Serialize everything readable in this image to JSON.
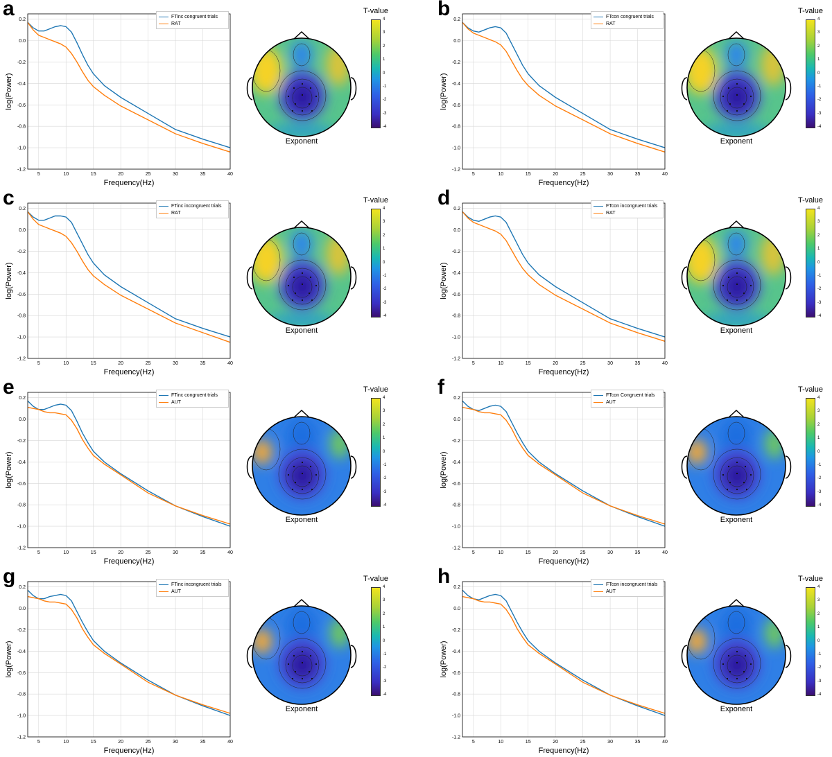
{
  "figure": {
    "tvalue_label": "T-value",
    "exponent_label": "Exponent",
    "colorbar_ticks": [
      "4",
      "3",
      "2",
      "1",
      "0",
      "-1",
      "-2",
      "-3",
      "-4"
    ],
    "colors": {
      "blue": "#1f77b4",
      "orange": "#ff7f0e"
    }
  },
  "panels": [
    {
      "letter": "a",
      "legend": [
        "FTinc congruent trials",
        "RAT"
      ]
    },
    {
      "letter": "b",
      "legend": [
        "FTcon congruent trials",
        "RAT"
      ]
    },
    {
      "letter": "c",
      "legend": [
        "FTinc incongruent trials",
        "RAT"
      ]
    },
    {
      "letter": "d",
      "legend": [
        "FTcon incongruent trials",
        "RAT"
      ]
    },
    {
      "letter": "e",
      "legend": [
        "FTinc congruent trials",
        "AUT"
      ]
    },
    {
      "letter": "f",
      "legend": [
        "FTcon Congruent trials",
        "AUT"
      ]
    },
    {
      "letter": "g",
      "legend": [
        "FTinc incongruent trials",
        "AUT"
      ]
    },
    {
      "letter": "h",
      "legend": [
        "FTcon incongruent trials",
        "AUT"
      ]
    }
  ],
  "chart_data": [
    {
      "panel": "a",
      "type": "line",
      "xlabel": "Frequency(Hz)",
      "ylabel": "log(Power)",
      "xlim": [
        3,
        40
      ],
      "ylim": [
        -1.2,
        0.25
      ],
      "xticks": [
        5,
        10,
        15,
        20,
        25,
        30,
        35,
        40
      ],
      "yticks": [
        0.2,
        0.0,
        -0.2,
        -0.4,
        -0.6,
        -0.8,
        -1.0,
        -1.2
      ],
      "x": [
        3,
        4,
        5,
        6,
        7,
        8,
        9,
        10,
        11,
        12,
        13,
        14,
        15,
        17,
        20,
        25,
        30,
        35,
        40
      ],
      "series": [
        {
          "name": "FTinc congruent trials",
          "color": "#1f77b4",
          "values": [
            0.17,
            0.12,
            0.09,
            0.09,
            0.11,
            0.13,
            0.14,
            0.13,
            0.08,
            -0.02,
            -0.13,
            -0.23,
            -0.31,
            -0.42,
            -0.53,
            -0.68,
            -0.83,
            -0.92,
            -1.0
          ]
        },
        {
          "name": "RAT",
          "color": "#ff7f0e",
          "values": [
            0.17,
            0.1,
            0.05,
            0.03,
            0.01,
            -0.01,
            -0.03,
            -0.06,
            -0.12,
            -0.2,
            -0.29,
            -0.37,
            -0.43,
            -0.51,
            -0.61,
            -0.74,
            -0.87,
            -0.96,
            -1.04
          ]
        }
      ]
    },
    {
      "panel": "b",
      "type": "line",
      "xlabel": "Frequency(Hz)",
      "ylabel": "log(Power)",
      "xlim": [
        3,
        40
      ],
      "ylim": [
        -1.2,
        0.25
      ],
      "xticks": [
        5,
        10,
        15,
        20,
        25,
        30,
        35,
        40
      ],
      "yticks": [
        0.2,
        0.0,
        -0.2,
        -0.4,
        -0.6,
        -0.8,
        -1.0,
        -1.2
      ],
      "x": [
        3,
        4,
        5,
        6,
        7,
        8,
        9,
        10,
        11,
        12,
        13,
        14,
        15,
        17,
        20,
        25,
        30,
        35,
        40
      ],
      "series": [
        {
          "name": "FTcon congruent trials",
          "color": "#1f77b4",
          "values": [
            0.17,
            0.12,
            0.09,
            0.08,
            0.1,
            0.12,
            0.13,
            0.12,
            0.07,
            -0.03,
            -0.13,
            -0.23,
            -0.31,
            -0.42,
            -0.53,
            -0.68,
            -0.83,
            -0.92,
            -1.0
          ]
        },
        {
          "name": "RAT",
          "color": "#ff7f0e",
          "values": [
            0.17,
            0.11,
            0.07,
            0.05,
            0.03,
            0.01,
            -0.01,
            -0.04,
            -0.1,
            -0.19,
            -0.28,
            -0.36,
            -0.42,
            -0.51,
            -0.61,
            -0.74,
            -0.87,
            -0.96,
            -1.04
          ]
        }
      ]
    },
    {
      "panel": "c",
      "type": "line",
      "xlabel": "Frequency(Hz)",
      "ylabel": "log(Power)",
      "xlim": [
        3,
        40
      ],
      "ylim": [
        -1.2,
        0.25
      ],
      "xticks": [
        5,
        10,
        15,
        20,
        25,
        30,
        35,
        40
      ],
      "yticks": [
        0.2,
        0.0,
        -0.2,
        -0.4,
        -0.6,
        -0.8,
        -1.0,
        -1.2
      ],
      "x": [
        3,
        4,
        5,
        6,
        7,
        8,
        9,
        10,
        11,
        12,
        13,
        14,
        15,
        17,
        20,
        25,
        30,
        35,
        40
      ],
      "series": [
        {
          "name": "FTinc incongruent trials",
          "color": "#1f77b4",
          "values": [
            0.17,
            0.12,
            0.09,
            0.09,
            0.11,
            0.13,
            0.13,
            0.12,
            0.07,
            -0.03,
            -0.13,
            -0.23,
            -0.31,
            -0.42,
            -0.53,
            -0.68,
            -0.83,
            -0.92,
            -1.0
          ]
        },
        {
          "name": "RAT",
          "color": "#ff7f0e",
          "values": [
            0.17,
            0.1,
            0.05,
            0.03,
            0.01,
            -0.01,
            -0.03,
            -0.06,
            -0.12,
            -0.2,
            -0.29,
            -0.37,
            -0.43,
            -0.51,
            -0.61,
            -0.74,
            -0.87,
            -0.96,
            -1.05
          ]
        }
      ]
    },
    {
      "panel": "d",
      "type": "line",
      "xlabel": "Frequency(Hz)",
      "ylabel": "log(Power)",
      "xlim": [
        3,
        40
      ],
      "ylim": [
        -1.2,
        0.25
      ],
      "xticks": [
        5,
        10,
        15,
        20,
        25,
        30,
        35,
        40
      ],
      "yticks": [
        0.2,
        0.0,
        -0.2,
        -0.4,
        -0.6,
        -0.8,
        -1.0,
        -1.2
      ],
      "x": [
        3,
        4,
        5,
        6,
        7,
        8,
        9,
        10,
        11,
        12,
        13,
        14,
        15,
        17,
        20,
        25,
        30,
        35,
        40
      ],
      "series": [
        {
          "name": "FTcon incongruent trials",
          "color": "#1f77b4",
          "values": [
            0.17,
            0.12,
            0.09,
            0.08,
            0.1,
            0.12,
            0.13,
            0.12,
            0.07,
            -0.03,
            -0.13,
            -0.23,
            -0.31,
            -0.42,
            -0.53,
            -0.68,
            -0.83,
            -0.92,
            -1.0
          ]
        },
        {
          "name": "RAT",
          "color": "#ff7f0e",
          "values": [
            0.17,
            0.11,
            0.07,
            0.05,
            0.03,
            0.01,
            -0.01,
            -0.04,
            -0.1,
            -0.19,
            -0.28,
            -0.36,
            -0.42,
            -0.51,
            -0.61,
            -0.74,
            -0.87,
            -0.96,
            -1.04
          ]
        }
      ]
    },
    {
      "panel": "e",
      "type": "line",
      "xlabel": "Frequency(Hz)",
      "ylabel": "log(Power)",
      "xlim": [
        3,
        40
      ],
      "ylim": [
        -1.2,
        0.25
      ],
      "xticks": [
        5,
        10,
        15,
        20,
        25,
        30,
        35,
        40
      ],
      "yticks": [
        0.2,
        0.0,
        -0.2,
        -0.4,
        -0.6,
        -0.8,
        -1.0,
        -1.2
      ],
      "x": [
        3,
        4,
        5,
        6,
        7,
        8,
        9,
        10,
        11,
        12,
        13,
        14,
        15,
        17,
        20,
        25,
        30,
        35,
        40
      ],
      "series": [
        {
          "name": "FTinc congruent trials",
          "color": "#1f77b4",
          "values": [
            0.17,
            0.12,
            0.09,
            0.09,
            0.11,
            0.13,
            0.14,
            0.13,
            0.08,
            -0.02,
            -0.13,
            -0.22,
            -0.3,
            -0.4,
            -0.51,
            -0.67,
            -0.81,
            -0.91,
            -1.0
          ]
        },
        {
          "name": "AUT",
          "color": "#ff7f0e",
          "values": [
            0.11,
            0.1,
            0.09,
            0.07,
            0.06,
            0.06,
            0.05,
            0.04,
            -0.01,
            -0.09,
            -0.19,
            -0.27,
            -0.34,
            -0.42,
            -0.52,
            -0.69,
            -0.81,
            -0.9,
            -0.98
          ]
        }
      ]
    },
    {
      "panel": "f",
      "type": "line",
      "xlabel": "Frequency(Hz)",
      "ylabel": "log(Power)",
      "xlim": [
        3,
        40
      ],
      "ylim": [
        -1.2,
        0.25
      ],
      "xticks": [
        5,
        10,
        15,
        20,
        25,
        30,
        35,
        40
      ],
      "yticks": [
        0.2,
        0.0,
        -0.2,
        -0.4,
        -0.6,
        -0.8,
        -1.0,
        -1.2
      ],
      "x": [
        3,
        4,
        5,
        6,
        7,
        8,
        9,
        10,
        11,
        12,
        13,
        14,
        15,
        17,
        20,
        25,
        30,
        35,
        40
      ],
      "series": [
        {
          "name": "FTcon Congruent trials",
          "color": "#1f77b4",
          "values": [
            0.17,
            0.12,
            0.09,
            0.08,
            0.1,
            0.12,
            0.13,
            0.12,
            0.07,
            -0.03,
            -0.13,
            -0.22,
            -0.3,
            -0.4,
            -0.51,
            -0.67,
            -0.81,
            -0.91,
            -1.0
          ]
        },
        {
          "name": "AUT",
          "color": "#ff7f0e",
          "values": [
            0.11,
            0.1,
            0.09,
            0.07,
            0.06,
            0.06,
            0.05,
            0.04,
            -0.01,
            -0.09,
            -0.19,
            -0.27,
            -0.34,
            -0.42,
            -0.52,
            -0.69,
            -0.81,
            -0.9,
            -0.98
          ]
        }
      ]
    },
    {
      "panel": "g",
      "type": "line",
      "xlabel": "Frequency(Hz)",
      "ylabel": "log(Power)",
      "xlim": [
        3,
        40
      ],
      "ylim": [
        -1.2,
        0.25
      ],
      "xticks": [
        5,
        10,
        15,
        20,
        25,
        30,
        35,
        40
      ],
      "yticks": [
        0.2,
        0.0,
        -0.2,
        -0.4,
        -0.6,
        -0.8,
        -1.0,
        -1.2
      ],
      "x": [
        3,
        4,
        5,
        6,
        7,
        8,
        9,
        10,
        11,
        12,
        13,
        14,
        15,
        17,
        20,
        25,
        30,
        35,
        40
      ],
      "series": [
        {
          "name": "FTinc incongruent trials",
          "color": "#1f77b4",
          "values": [
            0.17,
            0.12,
            0.09,
            0.09,
            0.11,
            0.12,
            0.13,
            0.12,
            0.07,
            -0.03,
            -0.13,
            -0.22,
            -0.3,
            -0.4,
            -0.51,
            -0.67,
            -0.81,
            -0.91,
            -1.0
          ]
        },
        {
          "name": "AUT",
          "color": "#ff7f0e",
          "values": [
            0.11,
            0.1,
            0.09,
            0.07,
            0.06,
            0.06,
            0.05,
            0.04,
            -0.01,
            -0.09,
            -0.19,
            -0.27,
            -0.34,
            -0.42,
            -0.52,
            -0.69,
            -0.81,
            -0.9,
            -0.98
          ]
        }
      ]
    },
    {
      "panel": "h",
      "type": "line",
      "xlabel": "Frequency(Hz)",
      "ylabel": "log(Power)",
      "xlim": [
        3,
        40
      ],
      "ylim": [
        -1.2,
        0.25
      ],
      "xticks": [
        5,
        10,
        15,
        20,
        25,
        30,
        35,
        40
      ],
      "yticks": [
        0.2,
        0.0,
        -0.2,
        -0.4,
        -0.6,
        -0.8,
        -1.0,
        -1.2
      ],
      "x": [
        3,
        4,
        5,
        6,
        7,
        8,
        9,
        10,
        11,
        12,
        13,
        14,
        15,
        17,
        20,
        25,
        30,
        35,
        40
      ],
      "series": [
        {
          "name": "FTcon incongruent trials",
          "color": "#1f77b4",
          "values": [
            0.17,
            0.12,
            0.09,
            0.08,
            0.1,
            0.12,
            0.13,
            0.12,
            0.07,
            -0.03,
            -0.13,
            -0.22,
            -0.3,
            -0.4,
            -0.51,
            -0.67,
            -0.81,
            -0.91,
            -1.0
          ]
        },
        {
          "name": "AUT",
          "color": "#ff7f0e",
          "values": [
            0.11,
            0.1,
            0.09,
            0.07,
            0.06,
            0.06,
            0.05,
            0.04,
            -0.01,
            -0.09,
            -0.19,
            -0.27,
            -0.34,
            -0.42,
            -0.52,
            -0.69,
            -0.81,
            -0.9,
            -0.98
          ]
        }
      ]
    }
  ]
}
